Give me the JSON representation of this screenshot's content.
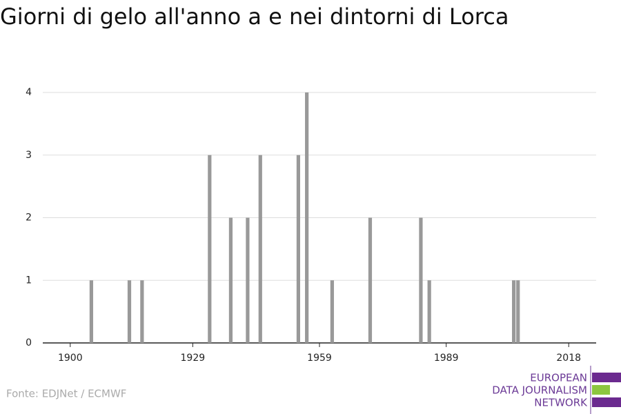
{
  "chart_data": {
    "type": "bar",
    "title": "Giorni di gelo all'anno a e nei dintorni di Lorca",
    "x": [
      1905,
      1914,
      1917,
      1933,
      1938,
      1942,
      1945,
      1954,
      1956,
      1962,
      1971,
      1983,
      1985,
      2005,
      2006
    ],
    "values": [
      1,
      1,
      1,
      3,
      2,
      2,
      3,
      3,
      4,
      1,
      2,
      2,
      1,
      1,
      1
    ],
    "color": "#999999",
    "xlim": [
      1893.5,
      2024.5
    ],
    "xticks": [
      1900,
      1929,
      1959,
      1989,
      2018
    ],
    "ylim": [
      0,
      4
    ],
    "yticks": [
      0,
      1,
      2,
      3,
      4
    ],
    "grid": true
  },
  "source": "Fonte: EDJNet / ECMWF",
  "logo": {
    "lines": [
      "EUROPEAN",
      "DATA JOURNALISM",
      "NETWORK"
    ]
  }
}
